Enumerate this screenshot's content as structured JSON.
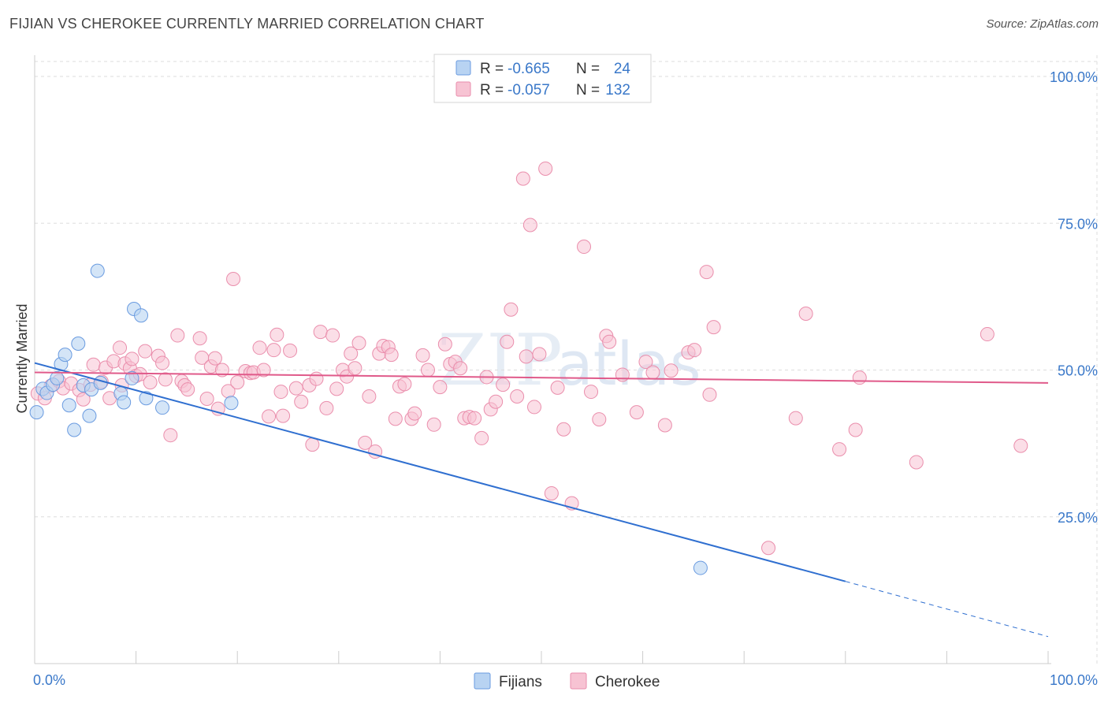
{
  "title": "FIJIAN VS CHEROKEE CURRENTLY MARRIED CORRELATION CHART",
  "source": "Source: ZipAtlas.com",
  "watermark": {
    "zip": "ZIP",
    "atlas": "atlas"
  },
  "colors": {
    "fijians_fill": "#b8d3f2",
    "fijians_stroke": "#6a9be0",
    "fijians_line": "#2f6fd0",
    "cherokee_fill": "#f7c3d3",
    "cherokee_stroke": "#ea8eac",
    "cherokee_line": "#e05a8a",
    "value_text": "#3a78c9",
    "grid": "#dddddd"
  },
  "stats": {
    "fijians": {
      "r_label": "R =",
      "r_value": "-0.665",
      "n_label": "N =",
      "n_value": "24"
    },
    "cherokee": {
      "r_label": "R =",
      "r_value": "-0.057",
      "n_label": "N =",
      "n_value": "132"
    }
  },
  "chart_data": {
    "type": "scatter",
    "title": "FIJIAN VS CHEROKEE CURRENTLY MARRIED CORRELATION CHART",
    "xlabel": "",
    "ylabel": "Currently Married",
    "xlim": [
      0,
      100
    ],
    "ylim": [
      0,
      105
    ],
    "x_tick_labels": [
      "0.0%",
      "100.0%"
    ],
    "y_ticks": [
      25,
      50,
      75,
      100
    ],
    "y_tick_labels": [
      "25.0%",
      "50.0%",
      "75.0%",
      "100.0%"
    ],
    "grid": true,
    "legend": [
      "Fijians",
      "Cherokee"
    ],
    "series": [
      {
        "name": "Fijians",
        "points": [
          [
            0.2,
            42.8
          ],
          [
            0.8,
            46.8
          ],
          [
            1.2,
            46.1
          ],
          [
            1.8,
            47.5
          ],
          [
            2.2,
            48.6
          ],
          [
            2.6,
            51.0
          ],
          [
            3.0,
            52.6
          ],
          [
            3.4,
            44.0
          ],
          [
            3.9,
            39.8
          ],
          [
            4.3,
            54.5
          ],
          [
            4.8,
            47.4
          ],
          [
            5.4,
            42.2
          ],
          [
            5.6,
            46.7
          ],
          [
            6.2,
            66.9
          ],
          [
            6.5,
            47.8
          ],
          [
            8.5,
            46.0
          ],
          [
            8.8,
            44.5
          ],
          [
            9.6,
            48.6
          ],
          [
            9.8,
            60.4
          ],
          [
            10.5,
            59.3
          ],
          [
            11.0,
            45.2
          ],
          [
            12.6,
            43.6
          ],
          [
            19.4,
            44.4
          ],
          [
            65.7,
            16.3
          ]
        ],
        "trend": {
          "x0": 0,
          "y0": 51.2,
          "x1": 80,
          "y1": 14.0,
          "dash_to_x": 100,
          "dash_to_y": 4.6
        }
      },
      {
        "name": "Cherokee",
        "points": [
          [
            0.3,
            46.0
          ],
          [
            1.0,
            45.2
          ],
          [
            1.6,
            47.3
          ],
          [
            2.4,
            48.1
          ],
          [
            2.8,
            46.9
          ],
          [
            3.6,
            47.7
          ],
          [
            4.4,
            46.6
          ],
          [
            4.8,
            45.0
          ],
          [
            5.5,
            47.5
          ],
          [
            5.8,
            50.9
          ],
          [
            6.6,
            48.0
          ],
          [
            7.0,
            50.4
          ],
          [
            7.4,
            45.2
          ],
          [
            7.8,
            51.5
          ],
          [
            8.4,
            53.8
          ],
          [
            8.6,
            47.4
          ],
          [
            8.9,
            51.1
          ],
          [
            9.4,
            50.3
          ],
          [
            9.6,
            51.9
          ],
          [
            10.0,
            49.0
          ],
          [
            10.4,
            49.3
          ],
          [
            10.9,
            53.2
          ],
          [
            11.4,
            47.9
          ],
          [
            12.2,
            52.4
          ],
          [
            12.6,
            51.2
          ],
          [
            12.9,
            48.4
          ],
          [
            13.4,
            38.9
          ],
          [
            14.1,
            55.9
          ],
          [
            14.5,
            48.1
          ],
          [
            14.8,
            47.4
          ],
          [
            15.1,
            46.7
          ],
          [
            16.3,
            55.4
          ],
          [
            16.5,
            52.1
          ],
          [
            17.0,
            45.1
          ],
          [
            17.4,
            50.6
          ],
          [
            17.8,
            52.0
          ],
          [
            18.1,
            43.4
          ],
          [
            18.5,
            50.0
          ],
          [
            19.1,
            46.4
          ],
          [
            19.6,
            65.5
          ],
          [
            20.0,
            47.9
          ],
          [
            20.8,
            49.8
          ],
          [
            21.3,
            49.5
          ],
          [
            21.6,
            49.6
          ],
          [
            22.2,
            53.8
          ],
          [
            22.6,
            50.0
          ],
          [
            23.1,
            42.1
          ],
          [
            23.6,
            53.4
          ],
          [
            23.9,
            56.0
          ],
          [
            24.3,
            46.3
          ],
          [
            24.5,
            42.2
          ],
          [
            25.2,
            53.3
          ],
          [
            25.8,
            46.9
          ],
          [
            26.3,
            44.6
          ],
          [
            27.1,
            47.4
          ],
          [
            27.4,
            37.3
          ],
          [
            27.8,
            48.5
          ],
          [
            28.2,
            56.5
          ],
          [
            28.8,
            43.5
          ],
          [
            29.4,
            55.9
          ],
          [
            29.8,
            46.8
          ],
          [
            30.4,
            50.0
          ],
          [
            30.8,
            48.9
          ],
          [
            31.2,
            52.8
          ],
          [
            31.6,
            50.3
          ],
          [
            32.0,
            54.6
          ],
          [
            32.6,
            37.6
          ],
          [
            33.0,
            45.5
          ],
          [
            33.6,
            36.1
          ],
          [
            34.0,
            52.8
          ],
          [
            34.4,
            54.1
          ],
          [
            34.9,
            53.9
          ],
          [
            35.2,
            52.6
          ],
          [
            35.6,
            41.7
          ],
          [
            36.0,
            47.2
          ],
          [
            36.5,
            47.6
          ],
          [
            37.2,
            41.7
          ],
          [
            37.5,
            42.6
          ],
          [
            38.3,
            52.5
          ],
          [
            38.8,
            50.0
          ],
          [
            39.4,
            40.7
          ],
          [
            40.0,
            47.1
          ],
          [
            40.5,
            54.4
          ],
          [
            41.0,
            51.0
          ],
          [
            41.5,
            51.4
          ],
          [
            42.0,
            50.3
          ],
          [
            42.4,
            41.8
          ],
          [
            42.9,
            42.0
          ],
          [
            43.4,
            41.8
          ],
          [
            44.1,
            38.4
          ],
          [
            44.6,
            48.8
          ],
          [
            45.0,
            43.3
          ],
          [
            45.5,
            44.6
          ],
          [
            46.2,
            47.5
          ],
          [
            46.6,
            54.8
          ],
          [
            47.0,
            60.3
          ],
          [
            47.6,
            45.5
          ],
          [
            48.2,
            82.6
          ],
          [
            48.5,
            52.3
          ],
          [
            48.9,
            74.7
          ],
          [
            49.3,
            43.7
          ],
          [
            49.8,
            52.7
          ],
          [
            50.4,
            84.3
          ],
          [
            51.0,
            29.0
          ],
          [
            51.6,
            47.0
          ],
          [
            52.2,
            39.9
          ],
          [
            53.0,
            27.3
          ],
          [
            54.2,
            71.0
          ],
          [
            54.9,
            46.3
          ],
          [
            55.7,
            41.6
          ],
          [
            56.4,
            55.8
          ],
          [
            56.7,
            54.8
          ],
          [
            58.0,
            49.2
          ],
          [
            59.4,
            42.8
          ],
          [
            60.3,
            51.4
          ],
          [
            61.0,
            49.6
          ],
          [
            62.2,
            40.6
          ],
          [
            62.8,
            49.9
          ],
          [
            64.5,
            53.0
          ],
          [
            65.1,
            53.4
          ],
          [
            66.3,
            66.7
          ],
          [
            66.6,
            45.8
          ],
          [
            67.0,
            57.3
          ],
          [
            72.4,
            19.7
          ],
          [
            75.1,
            41.8
          ],
          [
            76.1,
            59.6
          ],
          [
            79.4,
            36.5
          ],
          [
            81.0,
            39.8
          ],
          [
            81.4,
            48.7
          ],
          [
            87.0,
            34.3
          ],
          [
            94.0,
            56.1
          ],
          [
            97.3,
            37.1
          ]
        ],
        "trend": {
          "x0": 0,
          "y0": 49.6,
          "x1": 100,
          "y1": 47.8
        }
      }
    ]
  }
}
